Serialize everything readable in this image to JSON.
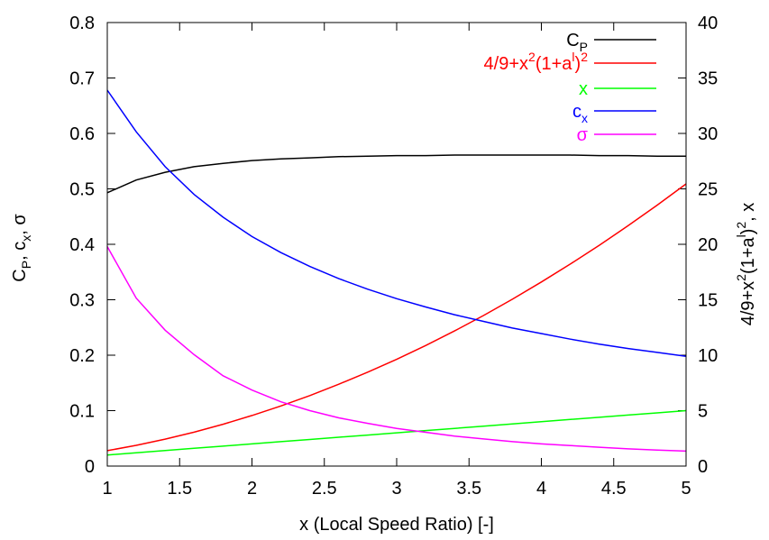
{
  "chart_data": {
    "type": "line",
    "xlabel": "x (Local Speed Ratio) [-]",
    "ylabel_left": {
      "main": "C",
      "sub": "P",
      "rest": ", c",
      "sub2": "x",
      "rest2": ", σ"
    },
    "ylabel_right": {
      "p1": "4/9+x",
      "sup1": "2",
      "p2": "(1+a",
      "sup2": "l",
      "p3": ")",
      "sup3": "2",
      "p4": ", x"
    },
    "xlim": [
      1,
      5
    ],
    "ylim_left": [
      0,
      0.8
    ],
    "ylim_right": [
      0,
      40
    ],
    "x_ticks": [
      "1",
      "1.5",
      "2",
      "2.5",
      "3",
      "3.5",
      "4",
      "4.5",
      "5"
    ],
    "y_left_ticks": [
      "0",
      "0.1",
      "0.2",
      "0.3",
      "0.4",
      "0.5",
      "0.6",
      "0.7",
      "0.8"
    ],
    "y_right_ticks": [
      "0",
      "5",
      "10",
      "15",
      "20",
      "25",
      "30",
      "35",
      "40"
    ],
    "legend_position": "top-right",
    "x": [
      1.0,
      1.2,
      1.4,
      1.6,
      1.8,
      2.0,
      2.2,
      2.4,
      2.6,
      2.8,
      3.0,
      3.2,
      3.4,
      3.6,
      3.8,
      4.0,
      4.2,
      4.4,
      4.6,
      4.8,
      5.0
    ],
    "series": [
      {
        "key": "cp",
        "legend": {
          "main": "C",
          "sub": "P"
        },
        "color": "#000000",
        "axis": "left",
        "values": [
          0.493,
          0.516,
          0.53,
          0.54,
          0.546,
          0.551,
          0.554,
          0.556,
          0.558,
          0.559,
          0.56,
          0.56,
          0.561,
          0.561,
          0.561,
          0.561,
          0.561,
          0.56,
          0.56,
          0.559,
          0.559
        ]
      },
      {
        "key": "ratio",
        "legend": {
          "p1": "4/9+x",
          "sup1": "2",
          "p2": "(1+a",
          "sup2": "l",
          "p3": ")",
          "sup3": "2"
        },
        "color": "#ff0000",
        "axis": "right",
        "values": [
          1.39,
          1.87,
          2.43,
          3.06,
          3.77,
          4.56,
          5.42,
          6.36,
          7.38,
          8.47,
          9.63,
          10.87,
          12.19,
          13.58,
          15.05,
          16.6,
          18.22,
          19.91,
          21.68,
          23.53,
          25.45
        ]
      },
      {
        "key": "x",
        "legend": {
          "main": "x"
        },
        "color": "#00ff00",
        "axis": "right",
        "values": [
          1.0,
          1.2,
          1.4,
          1.6,
          1.8,
          2.0,
          2.2,
          2.4,
          2.6,
          2.8,
          3.0,
          3.2,
          3.4,
          3.6,
          3.8,
          4.0,
          4.2,
          4.4,
          4.6,
          4.8,
          5.0
        ]
      },
      {
        "key": "cx",
        "legend": {
          "main": "c",
          "sub": "x"
        },
        "color": "#0000ff",
        "axis": "left",
        "values": [
          0.678,
          0.603,
          0.54,
          0.49,
          0.449,
          0.414,
          0.385,
          0.36,
          0.338,
          0.319,
          0.302,
          0.287,
          0.273,
          0.261,
          0.249,
          0.239,
          0.229,
          0.22,
          0.212,
          0.205,
          0.198
        ]
      },
      {
        "key": "sigma",
        "legend": {
          "main": "σ"
        },
        "color": "#ff00ff",
        "axis": "left",
        "values": [
          0.396,
          0.303,
          0.245,
          0.201,
          0.163,
          0.137,
          0.116,
          0.1,
          0.087,
          0.077,
          0.068,
          0.061,
          0.054,
          0.049,
          0.044,
          0.04,
          0.037,
          0.034,
          0.031,
          0.029,
          0.027
        ]
      }
    ]
  }
}
